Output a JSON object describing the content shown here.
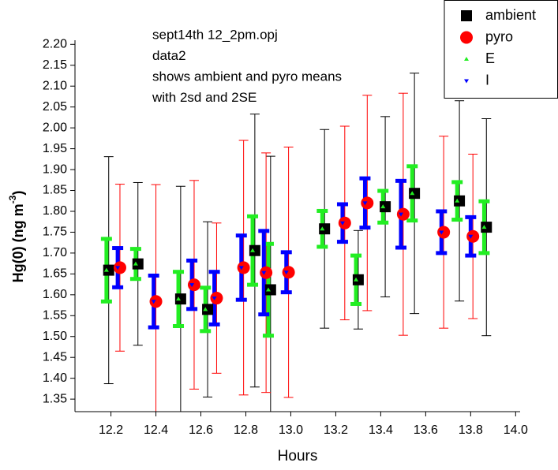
{
  "chart_data": {
    "type": "errorbar",
    "annotation": [
      "sept14th 12_2pm.opj",
      "data2",
      "shows ambient and pyro means",
      "with 2sd and 2SE"
    ],
    "xlabel": "Hours",
    "ylabel": [
      "Hg(0) (ng m",
      "-3",
      ")"
    ],
    "xlim": [
      12.04,
      14.02
    ],
    "ylim": [
      1.32,
      2.21
    ],
    "xticks": [
      12.2,
      12.4,
      12.6,
      12.8,
      {
        "value": 13.0,
        "label": "13.0"
      },
      13.2,
      13.4,
      13.6,
      13.8,
      {
        "value": 14.0,
        "label": "14.0"
      }
    ],
    "yticks": [
      {
        "value": 1.35,
        "label": "1.35"
      },
      {
        "value": 1.4,
        "label": "1.40"
      },
      {
        "value": 1.45,
        "label": "1.45"
      },
      {
        "value": 1.5,
        "label": "1.50"
      },
      {
        "value": 1.55,
        "label": "1.55"
      },
      {
        "value": 1.6,
        "label": "1.60"
      },
      {
        "value": 1.65,
        "label": "1.65"
      },
      {
        "value": 1.7,
        "label": "1.70"
      },
      {
        "value": 1.75,
        "label": "1.75"
      },
      {
        "value": 1.8,
        "label": "1.80"
      },
      {
        "value": 1.85,
        "label": "1.85"
      },
      {
        "value": 1.9,
        "label": "1.90"
      },
      {
        "value": 1.95,
        "label": "1.95"
      },
      {
        "value": 2.0,
        "label": "2.00"
      },
      {
        "value": 2.05,
        "label": "2.05"
      },
      {
        "value": 2.1,
        "label": "2.10"
      },
      {
        "value": 2.15,
        "label": "2.15"
      },
      {
        "value": 2.2,
        "label": "2.20"
      }
    ],
    "legend": "top-right",
    "series": [
      {
        "name": "ambient",
        "color": "#000000",
        "marker": "square",
        "x": [
          12.19,
          12.32,
          12.51,
          12.63,
          12.84,
          12.91,
          13.15,
          13.3,
          13.42,
          13.55,
          13.75,
          13.87
        ],
        "values": [
          1.659,
          1.674,
          1.59,
          1.565,
          1.706,
          1.612,
          1.758,
          1.636,
          1.811,
          1.843,
          1.825,
          1.762
        ],
        "errors": [
          0.272,
          0.195,
          0.27,
          0.21,
          0.327,
          0.32,
          0.238,
          0.118,
          0.216,
          0.288,
          0.24,
          0.26
        ]
      },
      {
        "name": "pyro",
        "color": "#ff0000",
        "marker": "circle",
        "x": [
          12.24,
          12.4,
          12.57,
          12.67,
          12.79,
          12.89,
          12.99,
          13.24,
          13.34,
          13.5,
          13.68,
          13.81
        ],
        "values": [
          1.665,
          1.584,
          1.624,
          1.592,
          1.665,
          1.653,
          1.654,
          1.772,
          1.82,
          1.793,
          1.75,
          1.74
        ],
        "errors": [
          0.2,
          0.28,
          0.25,
          0.18,
          0.305,
          0.287,
          0.3,
          0.232,
          0.258,
          0.29,
          0.23,
          0.197
        ]
      },
      {
        "name": "E",
        "color": "#22ee22",
        "marker": "triangle-up",
        "x": [
          12.18,
          12.31,
          12.5,
          12.62,
          12.83,
          12.9,
          13.14,
          13.29,
          13.41,
          13.54,
          13.74,
          13.86
        ],
        "values": [
          1.659,
          1.674,
          1.59,
          1.565,
          1.706,
          1.612,
          1.758,
          1.636,
          1.811,
          1.843,
          1.825,
          1.762
        ],
        "errors": [
          0.075,
          0.036,
          0.065,
          0.052,
          0.082,
          0.11,
          0.043,
          0.058,
          0.038,
          0.065,
          0.045,
          0.062
        ]
      },
      {
        "name": "I",
        "color": "#0000ff",
        "marker": "triangle-down",
        "x": [
          12.23,
          12.39,
          12.56,
          12.66,
          12.78,
          12.88,
          12.98,
          13.23,
          13.33,
          13.49,
          13.67,
          13.8
        ],
        "values": [
          1.665,
          1.584,
          1.624,
          1.592,
          1.665,
          1.653,
          1.654,
          1.772,
          1.82,
          1.793,
          1.75,
          1.74
        ],
        "errors": [
          0.047,
          0.062,
          0.058,
          0.063,
          0.077,
          0.1,
          0.048,
          0.045,
          0.059,
          0.08,
          0.05,
          0.046
        ]
      }
    ]
  }
}
